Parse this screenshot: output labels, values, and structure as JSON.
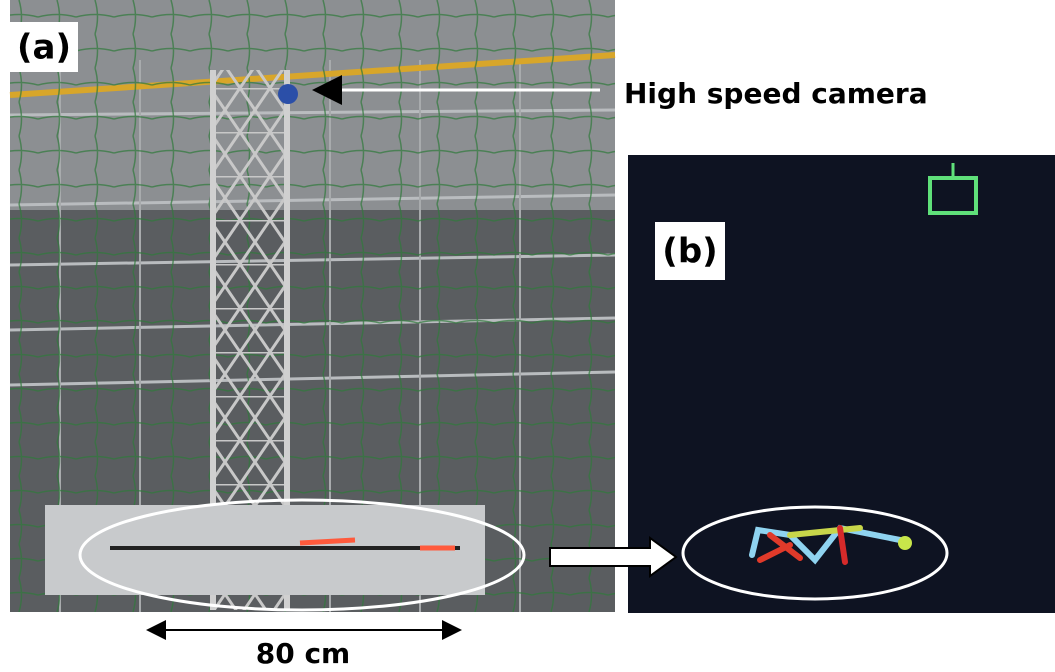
{
  "panels": [
    {
      "label": "(a)"
    },
    {
      "label": "(b)"
    }
  ],
  "annotations": {
    "camera": "High speed camera",
    "scale": "80 cm"
  }
}
